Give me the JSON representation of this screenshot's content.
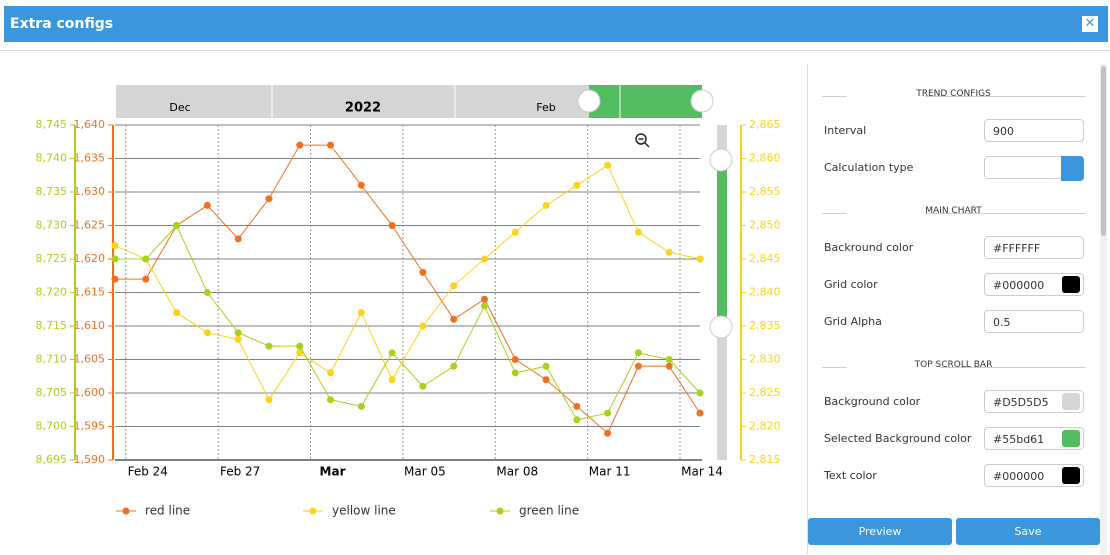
{
  "header": {
    "title": "Extra configs"
  },
  "chart_data": {
    "type": "line",
    "scrollbar": {
      "labels": [
        "Dec",
        "2022",
        "Feb"
      ]
    },
    "categories": [
      null,
      "Feb 24",
      null,
      null,
      "Feb 27",
      null,
      null,
      "Mar",
      null,
      null,
      "Mar 05",
      null,
      null,
      "Mar 08",
      null,
      null,
      "Mar 11",
      null,
      null,
      "Mar 14"
    ],
    "series": [
      {
        "name": "red line",
        "color": "#f07022",
        "axis": "y",
        "values": [
          1617,
          1617,
          1625,
          1628,
          1623,
          1629,
          1637,
          1637,
          1631,
          1625,
          1618,
          1611,
          1614,
          1605,
          1602,
          1598,
          1594,
          1604,
          1604,
          1597
        ]
      },
      {
        "name": "yellow line",
        "color": "#fcd21b",
        "axis": "y2",
        "values": [
          2847,
          2845,
          2837,
          2834,
          2833,
          2824,
          2831,
          2828,
          2837,
          2827,
          2835,
          2841,
          2845,
          2849,
          2853,
          2856,
          2859,
          2849,
          2846,
          2845
        ]
      },
      {
        "name": "green line",
        "color": "#a8d21a",
        "axis": "y3",
        "values": [
          8725,
          8725,
          8730,
          8720,
          8714,
          8712,
          8712,
          8704,
          8703,
          8711,
          8706,
          8709,
          8718,
          8708,
          8709,
          8701,
          8702,
          8711,
          8710,
          8705
        ]
      }
    ],
    "ylim": [
      1590,
      1640
    ],
    "yticks": [
      {
        "value": 1590,
        "label": "1,590"
      },
      {
        "value": 1595,
        "label": "1,595"
      },
      {
        "value": 1600,
        "label": "1,600"
      },
      {
        "value": 1605,
        "label": "1,605"
      },
      {
        "value": 1610,
        "label": "1,610"
      },
      {
        "value": 1615,
        "label": "1,615"
      },
      {
        "value": 1620,
        "label": "1,620"
      },
      {
        "value": 1625,
        "label": "1,625"
      },
      {
        "value": 1630,
        "label": "1,630"
      },
      {
        "value": 1635,
        "label": "1,635"
      },
      {
        "value": 1640,
        "label": "1,640"
      }
    ],
    "y2lim": [
      2815,
      2865
    ],
    "y2ticks": [
      {
        "value": 2815,
        "label": "2,815"
      },
      {
        "value": 2820,
        "label": "2,820"
      },
      {
        "value": 2825,
        "label": "2,825"
      },
      {
        "value": 2830,
        "label": "2,830"
      },
      {
        "value": 2835,
        "label": "2,835"
      },
      {
        "value": 2840,
        "label": "2,840"
      },
      {
        "value": 2845,
        "label": "2,845"
      },
      {
        "value": 2850,
        "label": "2,850"
      },
      {
        "value": 2855,
        "label": "2,855"
      },
      {
        "value": 2860,
        "label": "2,860"
      },
      {
        "value": 2865,
        "label": "2,865"
      }
    ],
    "y3lim": [
      8695,
      8745
    ],
    "y3ticks": [
      {
        "value": 8695,
        "label": "8,695"
      },
      {
        "value": 8700,
        "label": "8,700"
      },
      {
        "value": 8705,
        "label": "8,705"
      },
      {
        "value": 8710,
        "label": "8,710"
      },
      {
        "value": 8715,
        "label": "8,715"
      },
      {
        "value": 8720,
        "label": "8,720"
      },
      {
        "value": 8725,
        "label": "8,725"
      },
      {
        "value": 8730,
        "label": "8,730"
      },
      {
        "value": 8735,
        "label": "8,735"
      },
      {
        "value": 8740,
        "label": "8,740"
      },
      {
        "value": 8745,
        "label": "8,745"
      }
    ],
    "grid": true
  },
  "panel": {
    "sections": [
      {
        "title": "TREND CONFIGS",
        "fields": [
          {
            "label": "Interval",
            "value": "900"
          },
          {
            "label": "Calculation type"
          }
        ]
      },
      {
        "title": "MAIN CHART",
        "fields": [
          {
            "label": "Backround color",
            "value": "#FFFFFF"
          },
          {
            "label": "Grid color",
            "value": "#000000",
            "swatch": true
          },
          {
            "label": "Grid Alpha",
            "value": "0.5"
          }
        ]
      },
      {
        "title": "TOP SCROLL BAR",
        "fields": [
          {
            "label": "Background color",
            "value": "#D5D5D5",
            "swatch": true
          },
          {
            "label": "Selected Background color",
            "value": "#55bd61",
            "swatch": true
          },
          {
            "label": "Text color",
            "value": "#000000",
            "swatch": true
          }
        ]
      }
    ],
    "buttons": [
      "Preview",
      "Save"
    ]
  }
}
